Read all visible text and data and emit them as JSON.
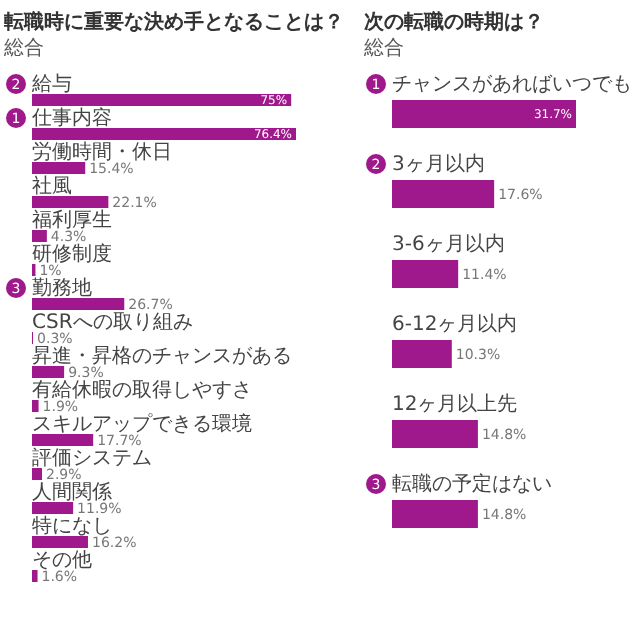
{
  "chart_data": [
    {
      "type": "bar",
      "orientation": "horizontal",
      "title": "転職時に重要な決め手となることは？",
      "subtitle": "総合",
      "tick_labels": "y",
      "color": "#a0198c",
      "categories": [
        "給与",
        "仕事内容",
        "労働時間・休日",
        "社風",
        "福利厚生",
        "研修制度",
        "勤務地",
        "CSRへの取り組み",
        "昇進・昇格のチャンスがある",
        "有給休暇の取得しやすさ",
        "スキルアップできる環境",
        "評価システム",
        "人間関係",
        "特になし",
        "その他"
      ],
      "values": [
        75,
        76.4,
        15.4,
        22.1,
        4.3,
        1,
        26.7,
        0.3,
        9.3,
        1.9,
        17.7,
        2.9,
        11.9,
        16.2,
        1.6
      ],
      "value_labels": [
        "75%",
        "76.4%",
        "15.4%",
        "22.1%",
        "4.3%",
        "1%",
        "26.7%",
        "0.3%",
        "9.3%",
        "1.9%",
        "17.7%",
        "2.9%",
        "11.9%",
        "16.2%",
        "1.6%"
      ],
      "annotations": [
        {
          "text": "2",
          "y": "給与"
        },
        {
          "text": "1",
          "y": "仕事内容"
        },
        {
          "text": "3",
          "y": "勤務地"
        }
      ]
    },
    {
      "type": "bar",
      "orientation": "horizontal",
      "title": "次の転職の時期は？",
      "subtitle": "総合",
      "tick_labels": "y",
      "color": "#a0198c",
      "categories": [
        "チャンスがあればいつでも",
        "3ヶ月以内",
        "3-6ヶ月以内",
        "6-12ヶ月以内",
        "12ヶ月以上先",
        "転職の予定はない"
      ],
      "values": [
        31.7,
        17.6,
        11.4,
        10.3,
        14.8,
        14.8
      ],
      "value_labels": [
        "31.7%",
        "17.6%",
        "11.4%",
        "10.3%",
        "14.8%",
        "14.8%"
      ],
      "annotations": [
        {
          "text": "1",
          "y": "チャンスがあればいつでも"
        },
        {
          "text": "2",
          "y": "3ヶ月以内"
        },
        {
          "text": "3",
          "y": "転職の予定はない"
        }
      ]
    }
  ]
}
